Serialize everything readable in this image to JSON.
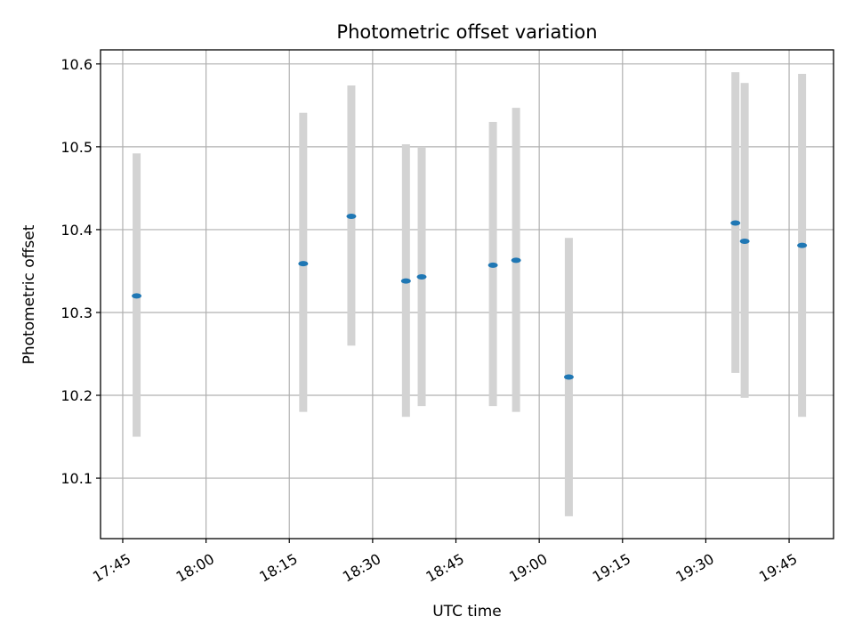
{
  "chart_data": {
    "type": "scatter",
    "title": "Photometric offset variation",
    "xlabel": "UTC time",
    "ylabel": "Photometric offset",
    "x_ticks": [
      "17:45",
      "18:00",
      "18:15",
      "18:30",
      "18:45",
      "19:00",
      "19:15",
      "19:30",
      "19:45"
    ],
    "y_ticks": [
      "10.1",
      "10.2",
      "10.3",
      "10.4",
      "10.5",
      "10.6"
    ],
    "xlim": [
      "17:41",
      "19:53"
    ],
    "ylim": [
      10.027,
      10.617
    ],
    "grid": true,
    "points": [
      {
        "x": "17:47:30",
        "y": 10.32,
        "ylow": 10.15,
        "yhigh": 10.492
      },
      {
        "x": "18:17:30",
        "y": 10.359,
        "ylow": 10.18,
        "yhigh": 10.541
      },
      {
        "x": "18:26:10",
        "y": 10.416,
        "ylow": 10.26,
        "yhigh": 10.574
      },
      {
        "x": "18:36:00",
        "y": 10.338,
        "ylow": 10.174,
        "yhigh": 10.503
      },
      {
        "x": "18:38:50",
        "y": 10.343,
        "ylow": 10.187,
        "yhigh": 10.5
      },
      {
        "x": "18:51:40",
        "y": 10.357,
        "ylow": 10.187,
        "yhigh": 10.53
      },
      {
        "x": "18:55:50",
        "y": 10.363,
        "ylow": 10.18,
        "yhigh": 10.547
      },
      {
        "x": "19:05:20",
        "y": 10.222,
        "ylow": 10.054,
        "yhigh": 10.39
      },
      {
        "x": "19:35:20",
        "y": 10.408,
        "ylow": 10.227,
        "yhigh": 10.59
      },
      {
        "x": "19:37:00",
        "y": 10.386,
        "ylow": 10.197,
        "yhigh": 10.577
      },
      {
        "x": "19:47:20",
        "y": 10.381,
        "ylow": 10.174,
        "yhigh": 10.588
      }
    ]
  }
}
